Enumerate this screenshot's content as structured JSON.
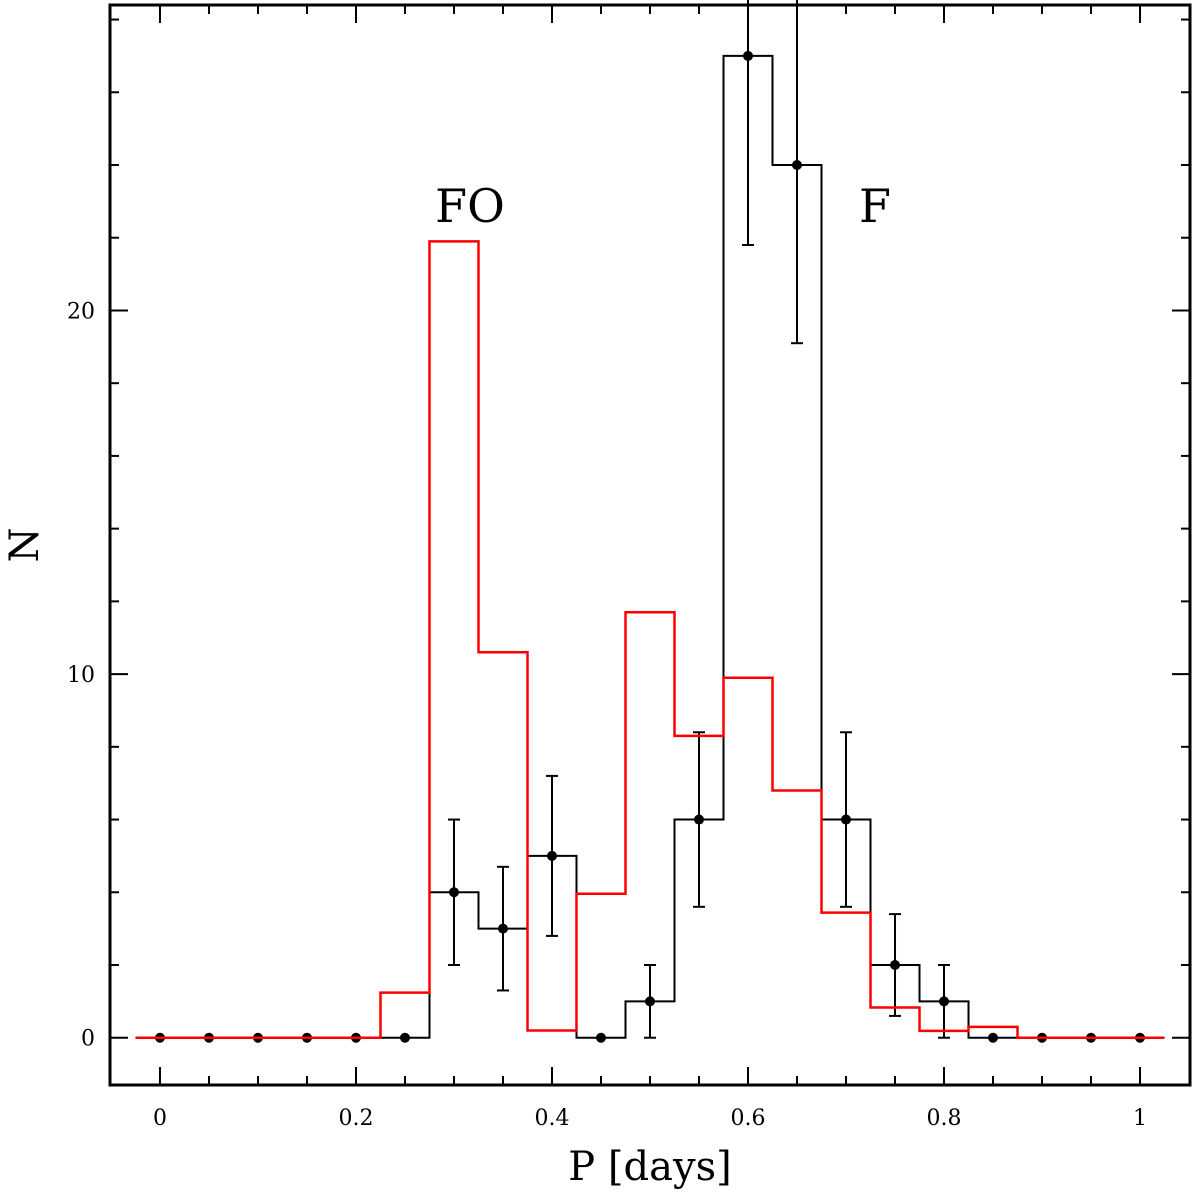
{
  "chart_data": {
    "type": "bar",
    "xlabel": "P [days]",
    "ylabel": "N",
    "xlim": [
      -0.051,
      1.051
    ],
    "ylim": [
      -1.3,
      28.4
    ],
    "grid": false,
    "bin_width": 0.05,
    "x_ticks": [
      0,
      0.2,
      0.4,
      0.6,
      0.8,
      1
    ],
    "x_tick_labels": [
      "0",
      "0.2",
      "0.4",
      "0.6",
      "0.8",
      "1"
    ],
    "y_ticks": [
      0,
      10,
      20
    ],
    "y_tick_labels": [
      "0",
      "10",
      "20"
    ],
    "annotations": [
      {
        "text": "FO",
        "x": 0.32,
        "y": 22.8
      },
      {
        "text": "F",
        "x": 0.73,
        "y": 22.8
      }
    ],
    "series": [
      {
        "color": "#000000",
        "style": "step-with-errorbars",
        "x": [
          0,
          0.05,
          0.1,
          0.15,
          0.2,
          0.25,
          0.3,
          0.35,
          0.4,
          0.45,
          0.5,
          0.55,
          0.6,
          0.65,
          0.7,
          0.75,
          0.8,
          0.85,
          0.9,
          0.95,
          1.0
        ],
        "values": [
          0,
          0,
          0,
          0,
          0,
          0,
          4,
          3,
          5,
          0,
          1,
          6,
          27,
          24,
          6,
          2,
          1,
          0,
          0,
          0,
          0
        ],
        "errors": [
          0,
          0,
          0,
          0,
          0,
          0,
          2,
          1.7,
          2.2,
          0,
          1,
          2.4,
          5.2,
          4.9,
          2.4,
          1.4,
          1,
          0,
          0,
          0,
          0
        ]
      },
      {
        "color": "#ff0000",
        "style": "step",
        "x": [
          0,
          0.05,
          0.1,
          0.15,
          0.2,
          0.25,
          0.3,
          0.35,
          0.4,
          0.45,
          0.5,
          0.55,
          0.6,
          0.65,
          0.7,
          0.75,
          0.8,
          0.85,
          0.9,
          0.95,
          1.0
        ],
        "values": [
          0,
          0,
          0,
          0,
          0,
          1.24,
          21.9,
          10.6,
          0.2,
          3.96,
          11.7,
          8.3,
          9.9,
          6.8,
          3.44,
          0.83,
          0.19,
          0.3,
          0,
          0,
          0
        ]
      }
    ]
  }
}
